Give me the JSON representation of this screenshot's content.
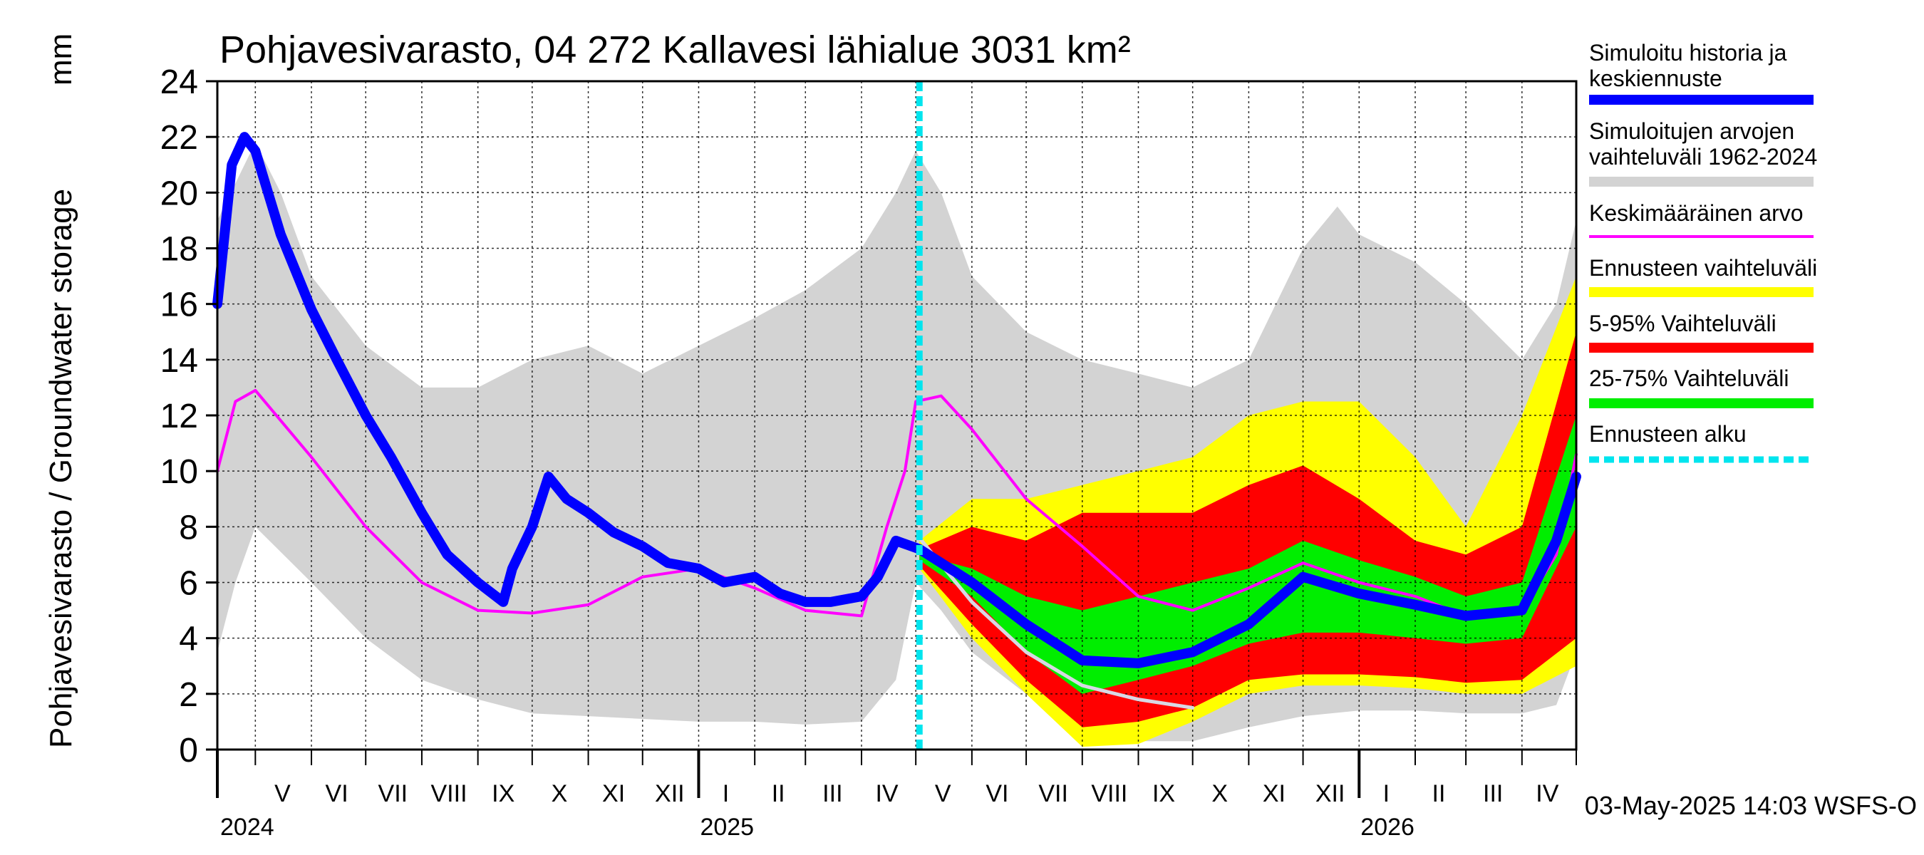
{
  "chart_data": {
    "type": "area",
    "title": "Pohjavesivarasto, 04 272 Kallavesi lähialue 3031 km²",
    "ylabel": "Pohjavesivarasto / Groundwater storage",
    "yunit": "mm",
    "ylim": [
      0,
      24
    ],
    "yticks": [
      0,
      2,
      4,
      6,
      8,
      10,
      12,
      14,
      16,
      18,
      20,
      22,
      24
    ],
    "x_start": "2024-04-10",
    "x_end": "2026-05-01",
    "forecast_start": "2025-05-03",
    "month_labels": [
      {
        "label": "V",
        "date": "2024-05-16"
      },
      {
        "label": "VI",
        "date": "2024-06-15"
      },
      {
        "label": "VII",
        "date": "2024-07-16"
      },
      {
        "label": "VIII",
        "date": "2024-08-16"
      },
      {
        "label": "IX",
        "date": "2024-09-15"
      },
      {
        "label": "X",
        "date": "2024-10-16"
      },
      {
        "label": "XI",
        "date": "2024-11-15"
      },
      {
        "label": "XII",
        "date": "2024-12-16"
      },
      {
        "label": "I",
        "date": "2025-01-16"
      },
      {
        "label": "II",
        "date": "2025-02-14"
      },
      {
        "label": "III",
        "date": "2025-03-16"
      },
      {
        "label": "IV",
        "date": "2025-04-15"
      },
      {
        "label": "V",
        "date": "2025-05-16"
      },
      {
        "label": "VI",
        "date": "2025-06-15"
      },
      {
        "label": "VII",
        "date": "2025-07-16"
      },
      {
        "label": "VIII",
        "date": "2025-08-16"
      },
      {
        "label": "IX",
        "date": "2025-09-15"
      },
      {
        "label": "X",
        "date": "2025-10-16"
      },
      {
        "label": "XI",
        "date": "2025-11-15"
      },
      {
        "label": "XII",
        "date": "2025-12-16"
      },
      {
        "label": "I",
        "date": "2026-01-16"
      },
      {
        "label": "II",
        "date": "2026-02-14"
      },
      {
        "label": "III",
        "date": "2026-03-16"
      },
      {
        "label": "IV",
        "date": "2026-04-15"
      }
    ],
    "month_boundaries": [
      "2024-05-01",
      "2024-06-01",
      "2024-07-01",
      "2024-08-01",
      "2024-09-01",
      "2024-10-01",
      "2024-11-01",
      "2024-12-01",
      "2025-01-01",
      "2025-02-01",
      "2025-03-01",
      "2025-04-01",
      "2025-05-01",
      "2025-06-01",
      "2025-07-01",
      "2025-08-01",
      "2025-09-01",
      "2025-10-01",
      "2025-11-01",
      "2025-12-01",
      "2026-01-01",
      "2026-02-01",
      "2026-03-01",
      "2026-04-01",
      "2026-05-01"
    ],
    "year_boundaries": [
      "2025-01-01",
      "2026-01-01"
    ],
    "year_labels": [
      {
        "label": "2024",
        "date": "2024-04-10"
      },
      {
        "label": "2025",
        "date": "2025-01-01"
      },
      {
        "label": "2026",
        "date": "2026-01-01"
      }
    ],
    "series": [
      {
        "name": "Simuloitujen arvojen vaihteluväli 1962-2024",
        "color": "#d3d3d3",
        "band": true,
        "upper": [
          [
            "2024-04-10",
            19
          ],
          [
            "2024-05-01",
            21.8
          ],
          [
            "2024-05-15",
            20
          ],
          [
            "2024-06-01",
            17
          ],
          [
            "2024-07-01",
            14.5
          ],
          [
            "2024-08-01",
            13
          ],
          [
            "2024-09-01",
            13
          ],
          [
            "2024-10-01",
            14
          ],
          [
            "2024-11-01",
            14.5
          ],
          [
            "2024-12-01",
            13.5
          ],
          [
            "2025-01-01",
            14.5
          ],
          [
            "2025-02-01",
            15.5
          ],
          [
            "2025-03-01",
            16.5
          ],
          [
            "2025-04-01",
            18
          ],
          [
            "2025-04-20",
            20
          ],
          [
            "2025-05-01",
            21.5
          ],
          [
            "2025-05-15",
            20
          ],
          [
            "2025-06-01",
            17
          ],
          [
            "2025-07-01",
            15
          ],
          [
            "2025-08-01",
            14
          ],
          [
            "2025-09-01",
            13.5
          ],
          [
            "2025-10-01",
            13
          ],
          [
            "2025-11-01",
            14
          ],
          [
            "2025-12-01",
            18
          ],
          [
            "2025-12-20",
            19.5
          ],
          [
            "2026-01-01",
            18.5
          ],
          [
            "2026-02-01",
            17.5
          ],
          [
            "2026-03-01",
            16
          ],
          [
            "2026-04-01",
            14
          ],
          [
            "2026-04-20",
            16
          ],
          [
            "2026-05-01",
            19
          ]
        ],
        "lower": [
          [
            "2024-04-10",
            3.5
          ],
          [
            "2024-04-20",
            6
          ],
          [
            "2024-05-01",
            8
          ],
          [
            "2024-06-01",
            6
          ],
          [
            "2024-07-01",
            4
          ],
          [
            "2024-08-01",
            2.5
          ],
          [
            "2024-09-01",
            1.8
          ],
          [
            "2024-10-01",
            1.3
          ],
          [
            "2024-11-01",
            1.2
          ],
          [
            "2024-12-01",
            1.1
          ],
          [
            "2025-01-01",
            1
          ],
          [
            "2025-02-01",
            1
          ],
          [
            "2025-03-01",
            0.9
          ],
          [
            "2025-04-01",
            1
          ],
          [
            "2025-04-20",
            2.5
          ],
          [
            "2025-05-01",
            6
          ],
          [
            "2025-05-15",
            5
          ],
          [
            "2025-06-01",
            3.5
          ],
          [
            "2025-07-01",
            2
          ],
          [
            "2025-08-01",
            0.8
          ],
          [
            "2025-09-01",
            0.3
          ],
          [
            "2025-10-01",
            0.3
          ],
          [
            "2025-11-01",
            0.8
          ],
          [
            "2025-12-01",
            1.2
          ],
          [
            "2026-01-01",
            1.4
          ],
          [
            "2026-02-01",
            1.4
          ],
          [
            "2026-03-01",
            1.3
          ],
          [
            "2026-04-01",
            1.3
          ],
          [
            "2026-04-20",
            1.6
          ],
          [
            "2026-05-01",
            3.5
          ]
        ]
      },
      {
        "name": "Ennusteen vaihteluväli",
        "color": "#ffff00",
        "band": true,
        "upper": [
          [
            "2025-05-03",
            7.5
          ],
          [
            "2025-06-01",
            9
          ],
          [
            "2025-07-01",
            9
          ],
          [
            "2025-08-01",
            9.5
          ],
          [
            "2025-09-01",
            10
          ],
          [
            "2025-10-01",
            10.5
          ],
          [
            "2025-11-01",
            12
          ],
          [
            "2025-12-01",
            12.5
          ],
          [
            "2026-01-01",
            12.5
          ],
          [
            "2026-02-01",
            10.5
          ],
          [
            "2026-03-01",
            8
          ],
          [
            "2026-04-01",
            12
          ],
          [
            "2026-05-01",
            17
          ]
        ],
        "lower": [
          [
            "2025-05-03",
            6.5
          ],
          [
            "2025-06-01",
            4
          ],
          [
            "2025-07-01",
            2
          ],
          [
            "2025-08-01",
            0.1
          ],
          [
            "2025-09-01",
            0.2
          ],
          [
            "2025-10-01",
            1
          ],
          [
            "2025-11-01",
            2
          ],
          [
            "2025-12-01",
            2.3
          ],
          [
            "2026-01-01",
            2.3
          ],
          [
            "2026-02-01",
            2.2
          ],
          [
            "2026-03-01",
            2
          ],
          [
            "2026-04-01",
            2
          ],
          [
            "2026-05-01",
            3
          ]
        ]
      },
      {
        "name": "5-95% Vaihteluväli",
        "color": "#ff0000",
        "band": true,
        "upper": [
          [
            "2025-05-03",
            7.2
          ],
          [
            "2025-06-01",
            8
          ],
          [
            "2025-07-01",
            7.5
          ],
          [
            "2025-08-01",
            8.5
          ],
          [
            "2025-09-01",
            8.5
          ],
          [
            "2025-10-01",
            8.5
          ],
          [
            "2025-11-01",
            9.5
          ],
          [
            "2025-12-01",
            10.2
          ],
          [
            "2026-01-01",
            9
          ],
          [
            "2026-02-01",
            7.5
          ],
          [
            "2026-03-01",
            7
          ],
          [
            "2026-04-01",
            8
          ],
          [
            "2026-05-01",
            15
          ]
        ],
        "lower": [
          [
            "2025-05-03",
            6.6
          ],
          [
            "2025-06-01",
            4.5
          ],
          [
            "2025-07-01",
            2.5
          ],
          [
            "2025-08-01",
            0.8
          ],
          [
            "2025-09-01",
            1
          ],
          [
            "2025-10-01",
            1.5
          ],
          [
            "2025-11-01",
            2.5
          ],
          [
            "2025-12-01",
            2.7
          ],
          [
            "2026-01-01",
            2.7
          ],
          [
            "2026-02-01",
            2.6
          ],
          [
            "2026-03-01",
            2.4
          ],
          [
            "2026-04-01",
            2.5
          ],
          [
            "2026-05-01",
            4
          ]
        ]
      },
      {
        "name": "25-75% Vaihteluväli",
        "color": "#00ee00",
        "band": true,
        "upper": [
          [
            "2025-05-03",
            7
          ],
          [
            "2025-06-01",
            6.5
          ],
          [
            "2025-07-01",
            5.5
          ],
          [
            "2025-08-01",
            5
          ],
          [
            "2025-09-01",
            5.5
          ],
          [
            "2025-10-01",
            6
          ],
          [
            "2025-11-01",
            6.5
          ],
          [
            "2025-12-01",
            7.5
          ],
          [
            "2026-01-01",
            6.8
          ],
          [
            "2026-02-01",
            6.2
          ],
          [
            "2026-03-01",
            5.5
          ],
          [
            "2026-04-01",
            6
          ],
          [
            "2026-05-01",
            12
          ]
        ],
        "lower": [
          [
            "2025-05-03",
            6.8
          ],
          [
            "2025-06-01",
            5.5
          ],
          [
            "2025-07-01",
            3.5
          ],
          [
            "2025-08-01",
            2
          ],
          [
            "2025-09-01",
            2.5
          ],
          [
            "2025-10-01",
            3
          ],
          [
            "2025-11-01",
            3.8
          ],
          [
            "2025-12-01",
            4.2
          ],
          [
            "2026-01-01",
            4.2
          ],
          [
            "2026-02-01",
            4
          ],
          [
            "2026-03-01",
            3.8
          ],
          [
            "2026-04-01",
            4
          ],
          [
            "2026-05-01",
            8
          ]
        ]
      },
      {
        "name": "Keskimääräinen arvo",
        "color": "#ff00ff",
        "values": [
          [
            "2024-04-10",
            10
          ],
          [
            "2024-04-20",
            12.5
          ],
          [
            "2024-05-01",
            12.9
          ],
          [
            "2024-06-01",
            10.5
          ],
          [
            "2024-07-01",
            8
          ],
          [
            "2024-08-01",
            6
          ],
          [
            "2024-09-01",
            5
          ],
          [
            "2024-10-01",
            4.9
          ],
          [
            "2024-11-01",
            5.2
          ],
          [
            "2024-12-01",
            6.2
          ],
          [
            "2025-01-01",
            6.5
          ],
          [
            "2025-02-01",
            5.8
          ],
          [
            "2025-03-01",
            5
          ],
          [
            "2025-04-01",
            4.8
          ],
          [
            "2025-04-15",
            8
          ],
          [
            "2025-04-25",
            10
          ],
          [
            "2025-05-01",
            12.5
          ],
          [
            "2025-05-15",
            12.7
          ],
          [
            "2025-06-01",
            11.5
          ],
          [
            "2025-07-01",
            9
          ],
          [
            "2025-08-01",
            7.3
          ],
          [
            "2025-09-01",
            5.5
          ],
          [
            "2025-10-01",
            5
          ],
          [
            "2025-11-01",
            5.8
          ],
          [
            "2025-12-01",
            6.7
          ],
          [
            "2026-01-01",
            6
          ],
          [
            "2026-02-01",
            5.5
          ],
          [
            "2026-03-01",
            4.8
          ],
          [
            "2026-04-01",
            5
          ],
          [
            "2026-04-20",
            7
          ],
          [
            "2026-05-01",
            10.6
          ]
        ]
      },
      {
        "name": "",
        "color": "#d8d8e4",
        "values": [
          [
            "2025-05-03",
            7.6
          ],
          [
            "2025-06-01",
            5.3
          ],
          [
            "2025-07-01",
            3.5
          ],
          [
            "2025-08-01",
            2.3
          ],
          [
            "2025-09-01",
            1.8
          ],
          [
            "2025-10-01",
            1.5
          ]
        ]
      },
      {
        "name": "Simuloitu historia ja keskiennuste",
        "color": "#0000ff",
        "values": [
          [
            "2024-04-10",
            16
          ],
          [
            "2024-04-18",
            21
          ],
          [
            "2024-04-25",
            22
          ],
          [
            "2024-05-01",
            21.5
          ],
          [
            "2024-05-15",
            18.5
          ],
          [
            "2024-06-01",
            15.8
          ],
          [
            "2024-06-15",
            14
          ],
          [
            "2024-07-01",
            12
          ],
          [
            "2024-07-15",
            10.5
          ],
          [
            "2024-08-01",
            8.5
          ],
          [
            "2024-08-15",
            7
          ],
          [
            "2024-09-01",
            6
          ],
          [
            "2024-09-15",
            5.3
          ],
          [
            "2024-09-20",
            6.5
          ],
          [
            "2024-10-01",
            8
          ],
          [
            "2024-10-10",
            9.8
          ],
          [
            "2024-10-20",
            9
          ],
          [
            "2024-11-01",
            8.5
          ],
          [
            "2024-11-15",
            7.8
          ],
          [
            "2024-12-01",
            7.3
          ],
          [
            "2024-12-15",
            6.7
          ],
          [
            "2025-01-01",
            6.5
          ],
          [
            "2025-01-15",
            6
          ],
          [
            "2025-02-01",
            6.2
          ],
          [
            "2025-02-15",
            5.6
          ],
          [
            "2025-03-01",
            5.3
          ],
          [
            "2025-03-15",
            5.3
          ],
          [
            "2025-04-01",
            5.5
          ],
          [
            "2025-04-10",
            6.2
          ],
          [
            "2025-04-20",
            7.5
          ],
          [
            "2025-05-03",
            7.2
          ],
          [
            "2025-06-01",
            6
          ],
          [
            "2025-07-01",
            4.5
          ],
          [
            "2025-08-01",
            3.2
          ],
          [
            "2025-09-01",
            3.1
          ],
          [
            "2025-10-01",
            3.5
          ],
          [
            "2025-11-01",
            4.5
          ],
          [
            "2025-12-01",
            6.2
          ],
          [
            "2026-01-01",
            5.6
          ],
          [
            "2026-02-01",
            5.2
          ],
          [
            "2026-03-01",
            4.8
          ],
          [
            "2026-04-01",
            5
          ],
          [
            "2026-04-20",
            7.5
          ],
          [
            "2026-05-01",
            9.8
          ]
        ]
      }
    ],
    "legend": {
      "placement": "right",
      "items": [
        {
          "label": "Simuloitu historia ja keskiennuste",
          "color": "#0000ff",
          "style": "thick"
        },
        {
          "label": "Simuloitujen arvojen vaihteluväli 1962-2024",
          "color": "#d3d3d3",
          "style": "thick"
        },
        {
          "label": "Keskimääräinen arvo",
          "color": "#ff00ff",
          "style": "thin"
        },
        {
          "label": "Ennusteen vaihteluväli",
          "color": "#ffff00",
          "style": "thick"
        },
        {
          "label": "5-95% Vaihteluväli",
          "color": "#ff0000",
          "style": "thick"
        },
        {
          "label": "25-75% Vaihteluväli",
          "color": "#00ee00",
          "style": "thick"
        },
        {
          "label": "Ennusteen alku",
          "color": "#00e5ee",
          "style": "dashed"
        }
      ]
    },
    "grid": true,
    "footer": "03-May-2025 14:03 WSFS-O"
  }
}
